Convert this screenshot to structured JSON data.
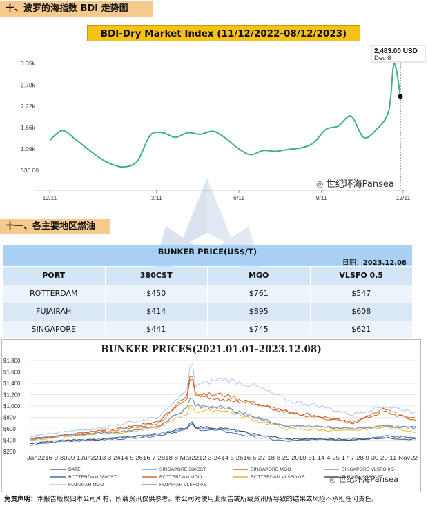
{
  "section_bdi": {
    "title": "十、波罗的海指数 BDI 走势图"
  },
  "bdi_chart": {
    "title": "BDI-Dry Market Index (11/12/2022-08/12/2023)",
    "callout_value": "2,483.00 USD",
    "callout_date": "Dec 8",
    "y_ticks": [
      "3.35k",
      "2.78k",
      "2.22k",
      "1.66k",
      "1.09k",
      "530.00"
    ],
    "x_ticks": [
      "12/11",
      "3/11",
      "6/11",
      "9/11",
      "12/11"
    ]
  },
  "watermark": {
    "text": "世纪环海Pansea",
    "logo_text": "pansea"
  },
  "section_fuel": {
    "title": "十一、各主要地区燃油"
  },
  "bunker_table": {
    "title": "BUNKER PRICE(US$/T)",
    "date_label": "日期：",
    "date_value": "2023.12.08",
    "headers": [
      "PORT",
      "380CST",
      "MGO",
      "VLSFO 0.5"
    ],
    "rows": [
      [
        "ROTTERDAM",
        "$450",
        "$761",
        "$547"
      ],
      [
        "FUJAIRAH",
        "$414",
        "$895",
        "$608"
      ],
      [
        "SINGAPORE",
        "$441",
        "$745",
        "$621"
      ]
    ]
  },
  "bunker_chart": {
    "title": "BUNKER PRICES(2021.01.01-2023.12.08)",
    "y_ticks": [
      "$1,800",
      "$1,600",
      "$1,400",
      "$1,200",
      "$1,000",
      "$800",
      "$600",
      "$400",
      "$200"
    ],
    "x_axis_text": "Jan2216 9 3020 1Jun2213 3 2414 5 2616 7 2818 8 Mar2212 3 2414 5 2616 6 27 18 8 29 2010 31 14 4 25 17 7 28 9 30 20 11 Nov22",
    "legend": [
      "DATE",
      "SINGAPORE 380CST",
      "SINGAPORE MGO",
      "SINGAPORE VLSFO 0.5",
      "ROTTERDAM 380CST",
      "ROTTERDAM MGO",
      "ROTTERDAM VLSFO 0.5",
      "FUJAIRAH 380CST",
      "FUJAIRAH MGO",
      "FUJAIRAH VLSFO 0.5"
    ]
  },
  "chart_data": [
    {
      "type": "line",
      "title": "BDI-Dry Market Index (11/12/2022-08/12/2023)",
      "xlabel": "",
      "ylabel": "",
      "ylim": [
        0,
        3500
      ],
      "x_ticks": [
        "12/11",
        "3/11",
        "6/11",
        "9/11",
        "12/11"
      ],
      "x": [
        "2022-11-12",
        "2022-11-26",
        "2022-12-10",
        "2022-12-24",
        "2023-01-07",
        "2023-01-21",
        "2023-02-04",
        "2023-02-18",
        "2023-03-04",
        "2023-03-18",
        "2023-04-01",
        "2023-04-15",
        "2023-04-29",
        "2023-05-13",
        "2023-05-27",
        "2023-06-10",
        "2023-06-24",
        "2023-07-08",
        "2023-07-22",
        "2023-08-05",
        "2023-08-19",
        "2023-09-02",
        "2023-09-16",
        "2023-09-30",
        "2023-10-14",
        "2023-10-28",
        "2023-11-11",
        "2023-11-25",
        "2023-12-01",
        "2023-12-08"
      ],
      "series": [
        {
          "name": "",
          "values": [
            1320,
            1580,
            1360,
            1100,
            850,
            680,
            620,
            780,
            1450,
            1520,
            1400,
            1520,
            1480,
            1560,
            1380,
            1110,
            940,
            1050,
            1030,
            1080,
            1120,
            1250,
            1610,
            1700,
            1960,
            1400,
            1600,
            2100,
            3350,
            2483
          ]
        }
      ],
      "annotation": {
        "value": "2,483.00 USD",
        "date": "Dec 8"
      },
      "grid": false
    },
    {
      "type": "line",
      "title": "BUNKER PRICES(2021.01.01-2023.12.08)",
      "xlabel": "",
      "ylabel": "",
      "ylim": [
        200,
        1800
      ],
      "y_ticks": [
        "$1,800",
        "$1,600",
        "$1,400",
        "$1,200",
        "$1,000",
        "$800",
        "$600",
        "$400",
        "$200"
      ],
      "categories": [
        "2021-01",
        "2021-04",
        "2021-07",
        "2021-10",
        "2022-01",
        "2022-03",
        "2022-06",
        "2022-09",
        "2022-12",
        "2023-03",
        "2023-06",
        "2023-09",
        "2023-12"
      ],
      "series": [
        {
          "name": "SINGAPORE 380CST",
          "values": [
            350,
            400,
            420,
            460,
            520,
            620,
            600,
            500,
            420,
            430,
            430,
            450,
            441
          ]
        },
        {
          "name": "SINGAPORE MGO",
          "values": [
            420,
            490,
            550,
            620,
            720,
            1250,
            1100,
            1050,
            900,
            820,
            700,
            900,
            745
          ]
        },
        {
          "name": "SINGAPORE VLSFO 0.5",
          "values": [
            430,
            480,
            520,
            560,
            650,
            1000,
            980,
            800,
            650,
            640,
            600,
            650,
            621
          ]
        },
        {
          "name": "ROTTERDAM 380CST",
          "values": [
            310,
            380,
            400,
            430,
            480,
            600,
            560,
            450,
            380,
            420,
            400,
            470,
            450
          ]
        },
        {
          "name": "ROTTERDAM MGO",
          "values": [
            400,
            480,
            530,
            600,
            700,
            1200,
            1200,
            1050,
            880,
            800,
            700,
            950,
            761
          ]
        },
        {
          "name": "ROTTERDAM VLSFO 0.5",
          "values": [
            400,
            460,
            500,
            540,
            620,
            900,
            930,
            750,
            600,
            580,
            560,
            640,
            547
          ]
        },
        {
          "name": "FUJAIRAH 380CST",
          "values": [
            340,
            390,
            410,
            450,
            500,
            640,
            610,
            500,
            420,
            420,
            410,
            440,
            414
          ]
        },
        {
          "name": "FUJAIRAH MGO",
          "values": [
            460,
            540,
            600,
            700,
            800,
            1350,
            1480,
            1350,
            1100,
            1000,
            850,
            1000,
            895
          ]
        },
        {
          "name": "FUJAIRAH VLSFO 0.5",
          "values": [
            420,
            470,
            520,
            560,
            650,
            1010,
            980,
            800,
            650,
            640,
            600,
            660,
            608
          ]
        }
      ],
      "legend_position": "bottom"
    }
  ],
  "colors": {
    "section_header": "#f6c98c",
    "bdi_title_bg": "#f5c218",
    "bdi_line": "#3bb47e",
    "table_caption": "#a9d1f5",
    "s380": "#6aa0e8",
    "smgo": "#c85a1e",
    "svlsfo": "#7f8fa6",
    "r380": "#3f6bbd",
    "rmgo": "#d2692a",
    "rvlsfo": "#f0b428",
    "f380": "#4a4a4a",
    "fmgo": "#a8c6ef",
    "fvlsfo": "#7b8fb8"
  }
}
